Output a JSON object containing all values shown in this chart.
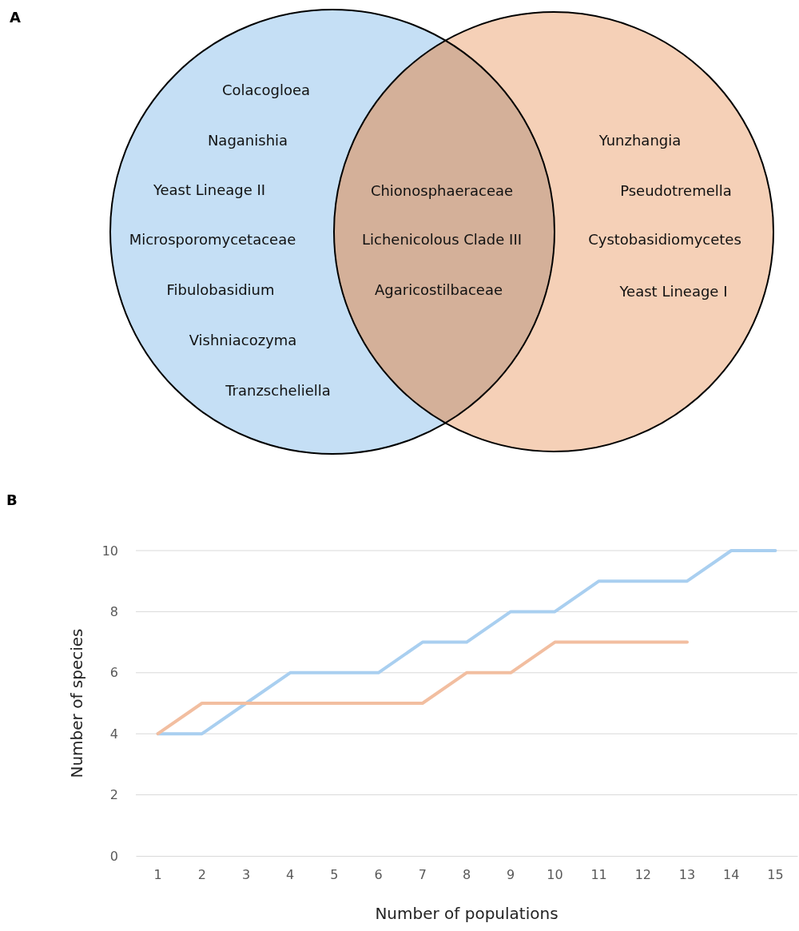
{
  "chart_data": [
    {
      "type": "other",
      "title": "A",
      "colors": [
        "#c5dff5",
        "#f5d0b7"
      ],
      "annotations": [
        "Colacogloea",
        "Naganishia",
        "Yeast Lineage II",
        "Microsporomycetaceae",
        "Fibulobasidium",
        "Vishniacozyma",
        "Tranzscheliella",
        "Chionosphaeraceae",
        "Lichenicolous Clade III",
        "Agaricostilbaceae",
        "Yunzhangia",
        "Pseudotremella",
        "Cystobasidiomycetes",
        "Yeast Lineage I"
      ]
    },
    {
      "type": "line",
      "title": "B",
      "xlabel": "Number of populations",
      "ylabel": "Number of species",
      "categories": [
        "1",
        "2",
        "3",
        "4",
        "5",
        "6",
        "7",
        "8",
        "9",
        "10",
        "11",
        "12",
        "13",
        "14",
        "15"
      ],
      "series": [
        {
          "color": "#a9cff0",
          "values": [
            4,
            4,
            5,
            6,
            6,
            6,
            7,
            7,
            8,
            8,
            9,
            9,
            9,
            10,
            10
          ]
        },
        {
          "color": "#f2bea0",
          "values": [
            4,
            5,
            5,
            5,
            5,
            5,
            5,
            6,
            6,
            7,
            7,
            7,
            7,
            null,
            null
          ]
        }
      ],
      "ylim": [
        0,
        10
      ],
      "yticks": [
        0,
        2,
        4,
        6,
        8,
        10
      ],
      "grid": "y",
      "marker": "none",
      "line_style": "solid"
    }
  ]
}
